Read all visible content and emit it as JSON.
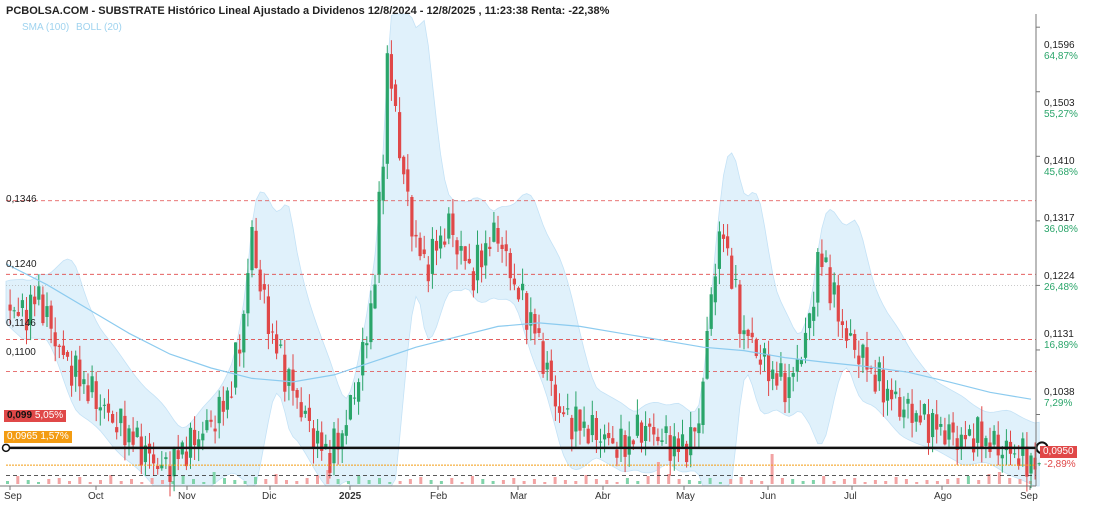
{
  "title": "PCBOLSA.COM - SUBSTRATE Histórico Lineal Ajustado a Dividenos 12/8/2024 - 12/8/2025 , 11:23:38 Renta: -22,38%",
  "indicators": [
    "SMA (100)",
    "BOLL (20)"
  ],
  "colors": {
    "up": "#2aa56a",
    "down": "#e04848",
    "band": "#d6ecfa",
    "sma": "#8ccbef",
    "level": "#e04848",
    "orange": "#f39c12"
  },
  "chart_data": {
    "type": "candlestick",
    "y_ticks": [
      {
        "price": "0,1596",
        "pct": "64,87%"
      },
      {
        "price": "0,1503",
        "pct": "55,27%"
      },
      {
        "price": "0,1410",
        "pct": "45,68%"
      },
      {
        "price": "0,1317",
        "pct": "36,08%"
      },
      {
        "price": "0,1224",
        "pct": "26,48%"
      },
      {
        "price": "0,1131",
        "pct": "16,89%"
      },
      {
        "price": "0,1038",
        "pct": "7,29%"
      }
    ],
    "last_price": {
      "price": "0,0950",
      "pct": "-2,89%"
    },
    "x_ticks": [
      "Sep",
      "Oct",
      "Nov",
      "Dic",
      "2025",
      "Feb",
      "Mar",
      "Abr",
      "May",
      "Jun",
      "Jul",
      "Ago",
      "Sep"
    ],
    "levels": [
      "0,1346",
      "0,1240",
      "0,1146",
      "0,1100"
    ],
    "tags": [
      {
        "label": "0,099",
        "pct": "5,05%"
      },
      {
        "label": "0,0965",
        "pct": "1,57%"
      }
    ],
    "ylim": [
      0.0935,
      0.1615
    ],
    "grid": false,
    "close_path": [
      [
        0,
        0.12
      ],
      [
        8,
        0.118
      ],
      [
        16,
        0.121
      ],
      [
        22,
        0.116
      ],
      [
        28,
        0.112
      ],
      [
        36,
        0.109
      ],
      [
        44,
        0.106
      ],
      [
        52,
        0.103
      ],
      [
        60,
        0.101
      ],
      [
        66,
        0.099
      ],
      [
        72,
        0.097
      ],
      [
        78,
        0.096
      ],
      [
        84,
        0.098
      ],
      [
        92,
        0.1
      ],
      [
        98,
        0.102
      ],
      [
        104,
        0.104
      ],
      [
        110,
        0.108
      ],
      [
        116,
        0.118
      ],
      [
        120,
        0.13
      ],
      [
        124,
        0.122
      ],
      [
        130,
        0.115
      ],
      [
        136,
        0.11
      ],
      [
        142,
        0.106
      ],
      [
        148,
        0.102
      ],
      [
        154,
        0.099
      ],
      [
        158,
        0.098
      ],
      [
        164,
        0.101
      ],
      [
        170,
        0.107
      ],
      [
        176,
        0.115
      ],
      [
        180,
        0.124
      ],
      [
        184,
        0.142
      ],
      [
        186,
        0.155
      ],
      [
        190,
        0.147
      ],
      [
        194,
        0.138
      ],
      [
        198,
        0.131
      ],
      [
        204,
        0.125
      ],
      [
        210,
        0.128
      ],
      [
        216,
        0.131
      ],
      [
        222,
        0.127
      ],
      [
        228,
        0.124
      ],
      [
        234,
        0.128
      ],
      [
        240,
        0.13
      ],
      [
        246,
        0.124
      ],
      [
        252,
        0.12
      ],
      [
        258,
        0.116
      ],
      [
        262,
        0.112
      ],
      [
        266,
        0.108
      ],
      [
        270,
        0.104
      ],
      [
        276,
        0.103
      ],
      [
        282,
        0.102
      ],
      [
        288,
        0.101
      ],
      [
        294,
        0.1
      ],
      [
        300,
        0.099
      ],
      [
        304,
        0.1
      ],
      [
        310,
        0.102
      ],
      [
        316,
        0.101
      ],
      [
        322,
        0.1
      ],
      [
        328,
        0.099
      ],
      [
        334,
        0.1
      ],
      [
        338,
        0.103
      ],
      [
        342,
        0.115
      ],
      [
        346,
        0.126
      ],
      [
        350,
        0.13
      ],
      [
        354,
        0.124
      ],
      [
        358,
        0.117
      ],
      [
        364,
        0.114
      ],
      [
        370,
        0.111
      ],
      [
        376,
        0.109
      ],
      [
        382,
        0.108
      ],
      [
        388,
        0.113
      ],
      [
        392,
        0.117
      ],
      [
        396,
        0.126
      ],
      [
        400,
        0.125
      ],
      [
        406,
        0.118
      ],
      [
        412,
        0.114
      ],
      [
        418,
        0.112
      ],
      [
        424,
        0.109
      ],
      [
        430,
        0.107
      ],
      [
        436,
        0.105
      ],
      [
        442,
        0.104
      ],
      [
        448,
        0.103
      ],
      [
        454,
        0.102
      ],
      [
        460,
        0.101
      ],
      [
        466,
        0.1
      ],
      [
        472,
        0.101
      ],
      [
        478,
        0.1
      ],
      [
        484,
        0.099
      ],
      [
        490,
        0.0985
      ],
      [
        496,
        0.0975
      ],
      [
        500,
        0.097
      ],
      [
        502,
        0.0965
      ],
      [
        504,
        0.095
      ]
    ],
    "sma_100": [
      [
        0,
        0.1255
      ],
      [
        20,
        0.1225
      ],
      [
        40,
        0.119
      ],
      [
        60,
        0.1155
      ],
      [
        80,
        0.1125
      ],
      [
        100,
        0.1105
      ],
      [
        120,
        0.109
      ],
      [
        140,
        0.1085
      ],
      [
        160,
        0.1095
      ],
      [
        180,
        0.1115
      ],
      [
        200,
        0.1135
      ],
      [
        220,
        0.115
      ],
      [
        240,
        0.1165
      ],
      [
        260,
        0.117
      ],
      [
        280,
        0.1165
      ],
      [
        300,
        0.1155
      ],
      [
        320,
        0.1145
      ],
      [
        340,
        0.1135
      ],
      [
        360,
        0.113
      ],
      [
        380,
        0.112
      ],
      [
        400,
        0.1113
      ],
      [
        420,
        0.1107
      ],
      [
        440,
        0.1099
      ],
      [
        460,
        0.1085
      ],
      [
        480,
        0.107
      ],
      [
        500,
        0.106
      ]
    ],
    "volume_heights": [
      3,
      8,
      4,
      2,
      5,
      6,
      3,
      7,
      2,
      4,
      9,
      3,
      5,
      2,
      6,
      4,
      3,
      8,
      5,
      2,
      12,
      6,
      4,
      3,
      7,
      5,
      10,
      4,
      3,
      6,
      9,
      14,
      5,
      3,
      8,
      4,
      6,
      2,
      3,
      5,
      7,
      4,
      3,
      6,
      2,
      8,
      5,
      3,
      4,
      6,
      3,
      5,
      2,
      7,
      4,
      3,
      9,
      5,
      4,
      2,
      6,
      3,
      8,
      22,
      10,
      5,
      4,
      3,
      6,
      2,
      5,
      7,
      4,
      3,
      30,
      6,
      5,
      3,
      4,
      8,
      3,
      5,
      6,
      2,
      4,
      3,
      7,
      5,
      2,
      4,
      3,
      5,
      6,
      8,
      4,
      10,
      12,
      6,
      5,
      3
    ]
  }
}
